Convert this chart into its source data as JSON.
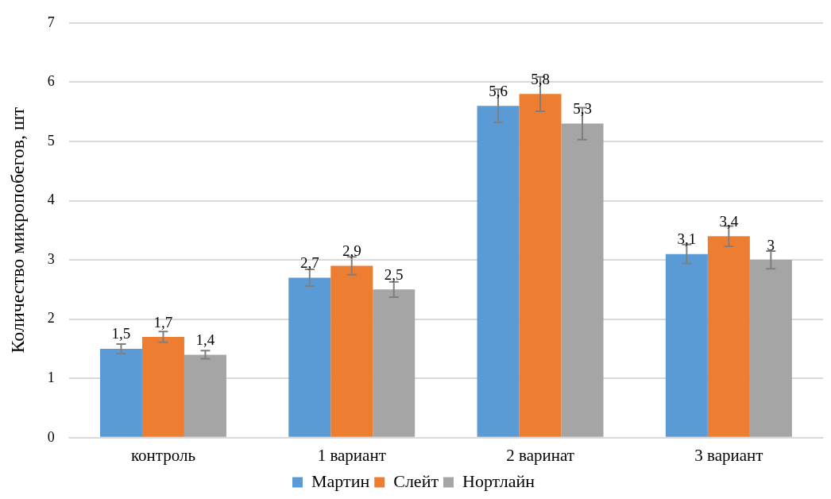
{
  "chart_data": {
    "type": "bar",
    "ylabel": "Количество микропобегов, шт",
    "categories": [
      "контроль",
      "1 вариант",
      "2 варинат",
      "3 вариант"
    ],
    "series": [
      {
        "name": "Мартин",
        "color": "#5b9bd5",
        "values": [
          1.5,
          2.7,
          5.6,
          3.1
        ],
        "errors": [
          0.08,
          0.14,
          0.28,
          0.16
        ],
        "value_labels": [
          "1,5",
          "2,7",
          "5,6",
          "3,1"
        ]
      },
      {
        "name": "Слейт",
        "color": "#ed7d31",
        "values": [
          1.7,
          2.9,
          5.8,
          3.4
        ],
        "errors": [
          0.09,
          0.15,
          0.29,
          0.17
        ],
        "value_labels": [
          "1,7",
          "2,9",
          "5,8",
          "3,4"
        ]
      },
      {
        "name": "Нортлайн",
        "color": "#a5a5a5",
        "values": [
          1.4,
          2.5,
          5.3,
          3
        ],
        "errors": [
          0.07,
          0.13,
          0.27,
          0.15
        ],
        "value_labels": [
          "1,4",
          "2,5",
          "5,3",
          "3"
        ]
      }
    ],
    "ylim": [
      0,
      7
    ],
    "yticks": [
      0,
      1,
      2,
      3,
      4,
      5,
      6,
      7
    ],
    "grid": "y",
    "legend": "bottom"
  }
}
